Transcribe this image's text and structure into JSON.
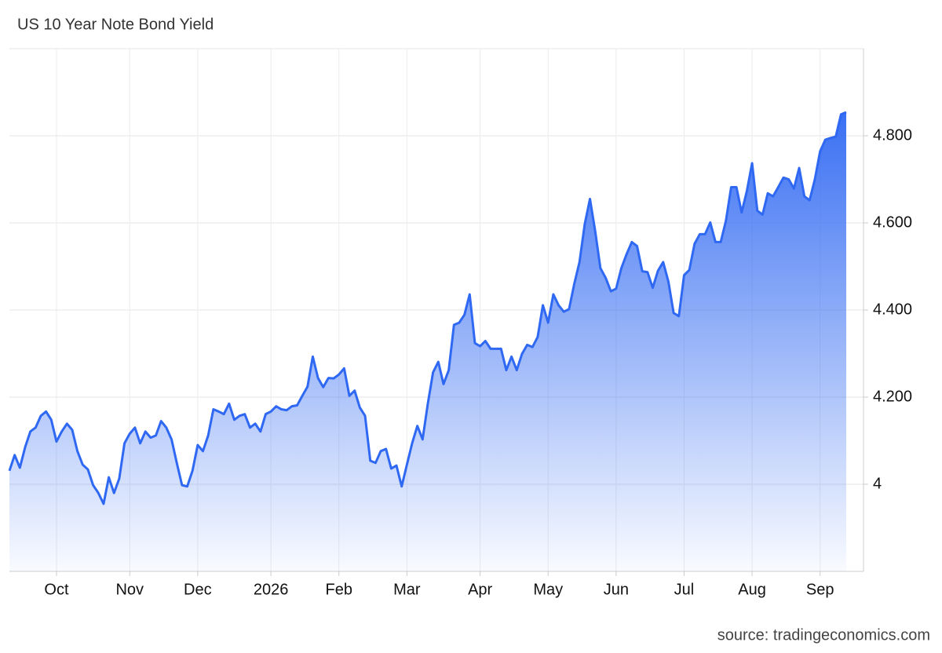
{
  "chart_data": {
    "type": "area",
    "title": "US 10 Year Note Bond Yield",
    "source": "source: tradingeconomics.com",
    "color": "#2f68f2",
    "categories": [
      null,
      null,
      null,
      null,
      null,
      null,
      null,
      null,
      null,
      "Oct",
      null,
      null,
      null,
      null,
      null,
      null,
      null,
      null,
      null,
      null,
      null,
      null,
      null,
      "Nov",
      null,
      null,
      null,
      null,
      null,
      null,
      null,
      null,
      null,
      null,
      null,
      null,
      "Dec",
      null,
      null,
      null,
      null,
      null,
      null,
      null,
      null,
      null,
      null,
      null,
      null,
      null,
      "2026",
      null,
      null,
      null,
      null,
      null,
      null,
      null,
      null,
      null,
      null,
      null,
      null,
      "Feb",
      null,
      null,
      null,
      null,
      null,
      null,
      null,
      null,
      null,
      null,
      null,
      null,
      "Mar",
      null,
      null,
      null,
      null,
      null,
      null,
      null,
      null,
      null,
      null,
      null,
      null,
      null,
      "Apr",
      null,
      null,
      null,
      null,
      null,
      null,
      null,
      null,
      null,
      null,
      null,
      null,
      "May",
      null,
      null,
      null,
      null,
      null,
      null,
      null,
      null,
      null,
      null,
      null,
      null,
      "Jun",
      null,
      null,
      null,
      null,
      null,
      null,
      null,
      null,
      null,
      null,
      null,
      null,
      "Jul",
      null,
      null,
      null,
      null,
      null,
      null,
      null,
      null,
      null,
      null,
      null,
      null,
      "Aug",
      null,
      null,
      null,
      null,
      null,
      null,
      null,
      null,
      null,
      null,
      null,
      null,
      "Sep",
      null,
      null,
      null,
      null,
      null
    ],
    "values": [
      4.031,
      4.067,
      4.038,
      4.085,
      4.121,
      4.13,
      4.157,
      4.167,
      4.148,
      4.098,
      4.121,
      4.139,
      4.125,
      4.076,
      4.045,
      4.034,
      3.998,
      3.98,
      3.955,
      4.016,
      3.98,
      4.013,
      4.094,
      4.116,
      4.13,
      4.094,
      4.121,
      4.107,
      4.112,
      4.145,
      4.13,
      4.103,
      4.049,
      3.998,
      3.995,
      4.031,
      4.09,
      4.076,
      4.112,
      4.172,
      4.167,
      4.161,
      4.185,
      4.148,
      4.157,
      4.161,
      4.13,
      4.139,
      4.121,
      4.161,
      4.167,
      4.179,
      4.172,
      4.17,
      4.179,
      4.181,
      4.203,
      4.224,
      4.293,
      4.244,
      4.223,
      4.244,
      4.243,
      4.252,
      4.266,
      4.203,
      4.215,
      4.176,
      4.157,
      4.054,
      4.049,
      4.076,
      4.081,
      4.036,
      4.043,
      3.995,
      4.045,
      4.094,
      4.134,
      4.103,
      4.185,
      4.257,
      4.281,
      4.23,
      4.262,
      4.366,
      4.371,
      4.389,
      4.436,
      4.324,
      4.317,
      4.329,
      4.311,
      4.311,
      4.311,
      4.262,
      4.293,
      4.262,
      4.299,
      4.32,
      4.315,
      4.338,
      4.411,
      4.371,
      4.436,
      4.411,
      4.396,
      4.402,
      4.46,
      4.51,
      4.597,
      4.655,
      4.581,
      4.496,
      4.474,
      4.443,
      4.449,
      4.496,
      4.528,
      4.556,
      4.547,
      4.489,
      4.487,
      4.451,
      4.49,
      4.51,
      4.465,
      4.393,
      4.386,
      4.48,
      4.492,
      4.552,
      4.574,
      4.574,
      4.601,
      4.556,
      4.556,
      4.605,
      4.682,
      4.682,
      4.624,
      4.673,
      4.737,
      4.628,
      4.619,
      4.668,
      4.661,
      4.682,
      4.704,
      4.7,
      4.679,
      4.726,
      4.661,
      4.652,
      4.7,
      4.764,
      4.791,
      4.795,
      4.798,
      4.849,
      4.854
    ],
    "ylim": [
      3.8,
      5.0
    ],
    "yticks": [
      4,
      {
        "value": 4.2,
        "label": "4.200"
      },
      {
        "value": 4.4,
        "label": "4.400"
      },
      {
        "value": 4.6,
        "label": "4.600"
      },
      {
        "value": 4.8,
        "label": "4.800"
      }
    ],
    "grid": true
  }
}
